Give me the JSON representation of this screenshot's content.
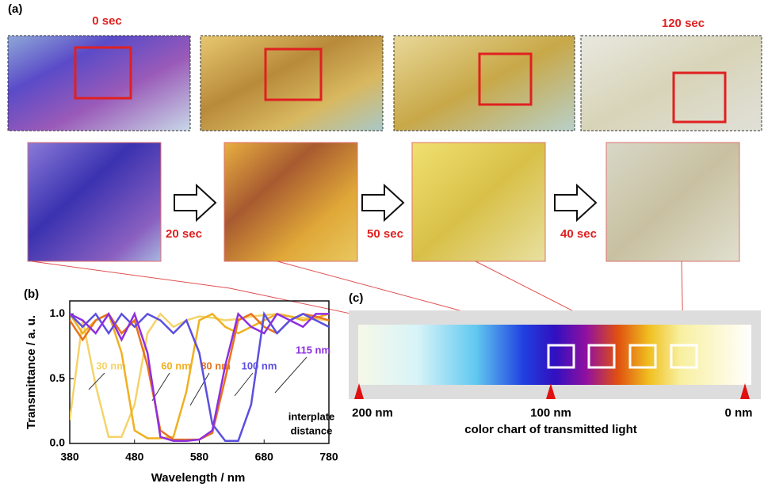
{
  "panel_a": {
    "label": "(a)",
    "times": [
      "0 sec",
      "120 sec"
    ],
    "intervals": [
      "20 sec",
      "50 sec",
      "40 sec"
    ]
  },
  "chart_data": {
    "type": "line",
    "label": "(b)",
    "xlabel": "Wavelength / nm",
    "ylabel": "Transmittance / a. u.",
    "xlim": [
      380,
      780
    ],
    "ylim": [
      0,
      1.1
    ],
    "xticks": [
      380,
      480,
      580,
      680,
      780
    ],
    "yticks": [
      {
        "value": 0,
        "label": "0.0"
      },
      {
        "value": 0.5,
        "label": "0.5"
      },
      {
        "value": 1,
        "label": "1.0"
      }
    ],
    "x": [
      380,
      400,
      420,
      440,
      460,
      480,
      500,
      520,
      540,
      560,
      580,
      600,
      620,
      640,
      660,
      680,
      700,
      720,
      740,
      760,
      780
    ],
    "series": [
      {
        "name": "30 nm",
        "color": "#f5d36a",
        "values": [
          0.18,
          0.95,
          0.45,
          0.05,
          0.05,
          0.3,
          0.85,
          1.0,
          0.9,
          0.95,
          0.98,
          0.97,
          0.95,
          0.96,
          0.98,
          0.99,
          1.0,
          0.98,
          0.97,
          0.96,
          0.95
        ]
      },
      {
        "name": "60 nm",
        "color": "#f0b020",
        "values": [
          1.0,
          0.85,
          0.95,
          1.0,
          0.7,
          0.1,
          0.04,
          0.04,
          0.05,
          0.4,
          0.95,
          1.0,
          0.9,
          0.85,
          0.9,
          0.95,
          1.0,
          0.98,
          0.95,
          0.97,
          1.0
        ]
      },
      {
        "name": "80 nm",
        "color": "#e8731c",
        "values": [
          0.95,
          0.8,
          0.95,
          1.0,
          0.85,
          0.95,
          0.6,
          0.1,
          0.03,
          0.03,
          0.03,
          0.08,
          0.5,
          0.95,
          1.0,
          0.9,
          0.85,
          0.95,
          1.0,
          0.98,
          0.95
        ]
      },
      {
        "name": "100 nm",
        "color": "#5b4fe0",
        "values": [
          1.0,
          0.9,
          1.0,
          0.85,
          1.0,
          0.9,
          1.0,
          0.95,
          0.85,
          0.95,
          0.7,
          0.15,
          0.02,
          0.02,
          0.3,
          1.0,
          0.85,
          0.95,
          1.0,
          0.95,
          0.9
        ]
      },
      {
        "name": "115 nm",
        "color": "#8e2fe0",
        "values": [
          1.0,
          0.95,
          0.85,
          1.0,
          0.8,
          1.0,
          0.7,
          0.05,
          0.02,
          0.02,
          0.03,
          0.1,
          0.6,
          1.0,
          0.9,
          0.85,
          1.0,
          0.95,
          0.9,
          1.0,
          1.0
        ]
      }
    ],
    "annotation": [
      "interplate",
      "distance"
    ]
  },
  "panel_c": {
    "label": "(c)",
    "ticks": [
      "200 nm",
      "100 nm",
      "0 nm"
    ],
    "caption": "color chart of transmitted light"
  }
}
